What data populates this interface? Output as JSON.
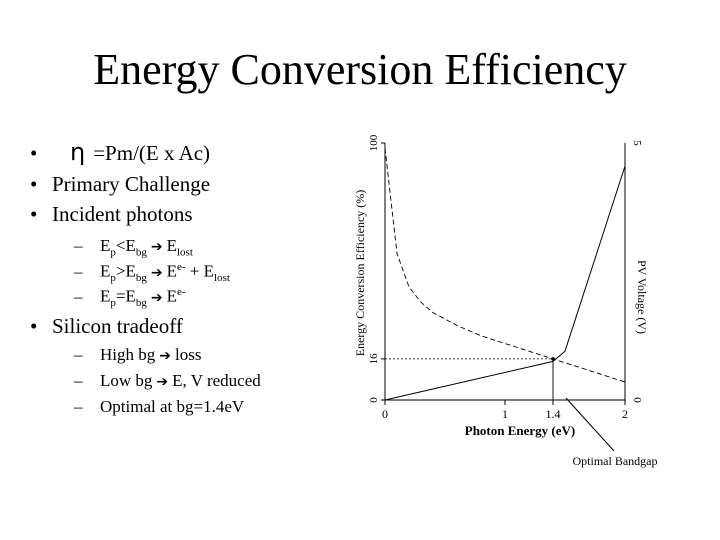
{
  "slide": {
    "title": "Energy Conversion Efficiency",
    "bullets": [
      {
        "symbol": "η",
        "text": "=Pm/(E x Ac)"
      },
      {
        "text": "Primary Challenge"
      },
      {
        "text": "Incident photons"
      }
    ],
    "photon_cases": [
      {
        "a": "E",
        "a_sub": "p",
        "op": "<",
        "b": "E",
        "b_sub": "bg",
        "res": "E",
        "res_sub": "lost"
      },
      {
        "a": "E",
        "a_sub": "p",
        "op": ">",
        "b": "E",
        "b_sub": "bg",
        "res": "E",
        "res_sup": "e-",
        "plus": " + E",
        "plus_sub": "lost"
      },
      {
        "a": "E",
        "a_sub": "p",
        "op": "=",
        "b": "E",
        "b_sub": "bg",
        "res": "E",
        "res_sup": "e-"
      }
    ],
    "bullet4": "Silicon tradeoff",
    "tradeoffs": [
      "High bg",
      "Low bg",
      "Optimal at bg=1.4eV"
    ],
    "tradeoff_results": [
      "loss",
      "E, V reduced"
    ]
  },
  "chart_data": {
    "type": "line",
    "xlabel": "Photon Energy (eV)",
    "ylabel_left": "Energy Conversion Efficiency (%)",
    "ylabel_right": "PV Voltage (V)",
    "x_ticks": [
      "0",
      "1",
      "1.4",
      "2"
    ],
    "x_range": [
      0,
      2
    ],
    "y_left_ticks": [
      "0",
      "16",
      "100"
    ],
    "y_left_range": [
      0,
      100
    ],
    "y_right_ticks": [
      "0",
      "5"
    ],
    "y_right_range": [
      0,
      5
    ],
    "series": [
      {
        "style": "dashed",
        "axis": "left",
        "x": [
          0.0,
          0.1,
          0.2,
          0.3,
          0.4,
          0.6,
          0.8,
          1.0,
          1.2,
          1.4,
          1.6,
          1.8,
          2.0
        ],
        "y": [
          98,
          57,
          44,
          38,
          34,
          29,
          25,
          22,
          19,
          16,
          13,
          10,
          7
        ]
      },
      {
        "style": "solid",
        "axis": "left",
        "x": [
          0.0,
          1.4,
          1.5,
          2.0
        ],
        "y": [
          0,
          15,
          19,
          91
        ]
      }
    ],
    "marked_point": {
      "x": 1.4,
      "y": 16
    },
    "annotation": "Optimal Bandgap"
  }
}
